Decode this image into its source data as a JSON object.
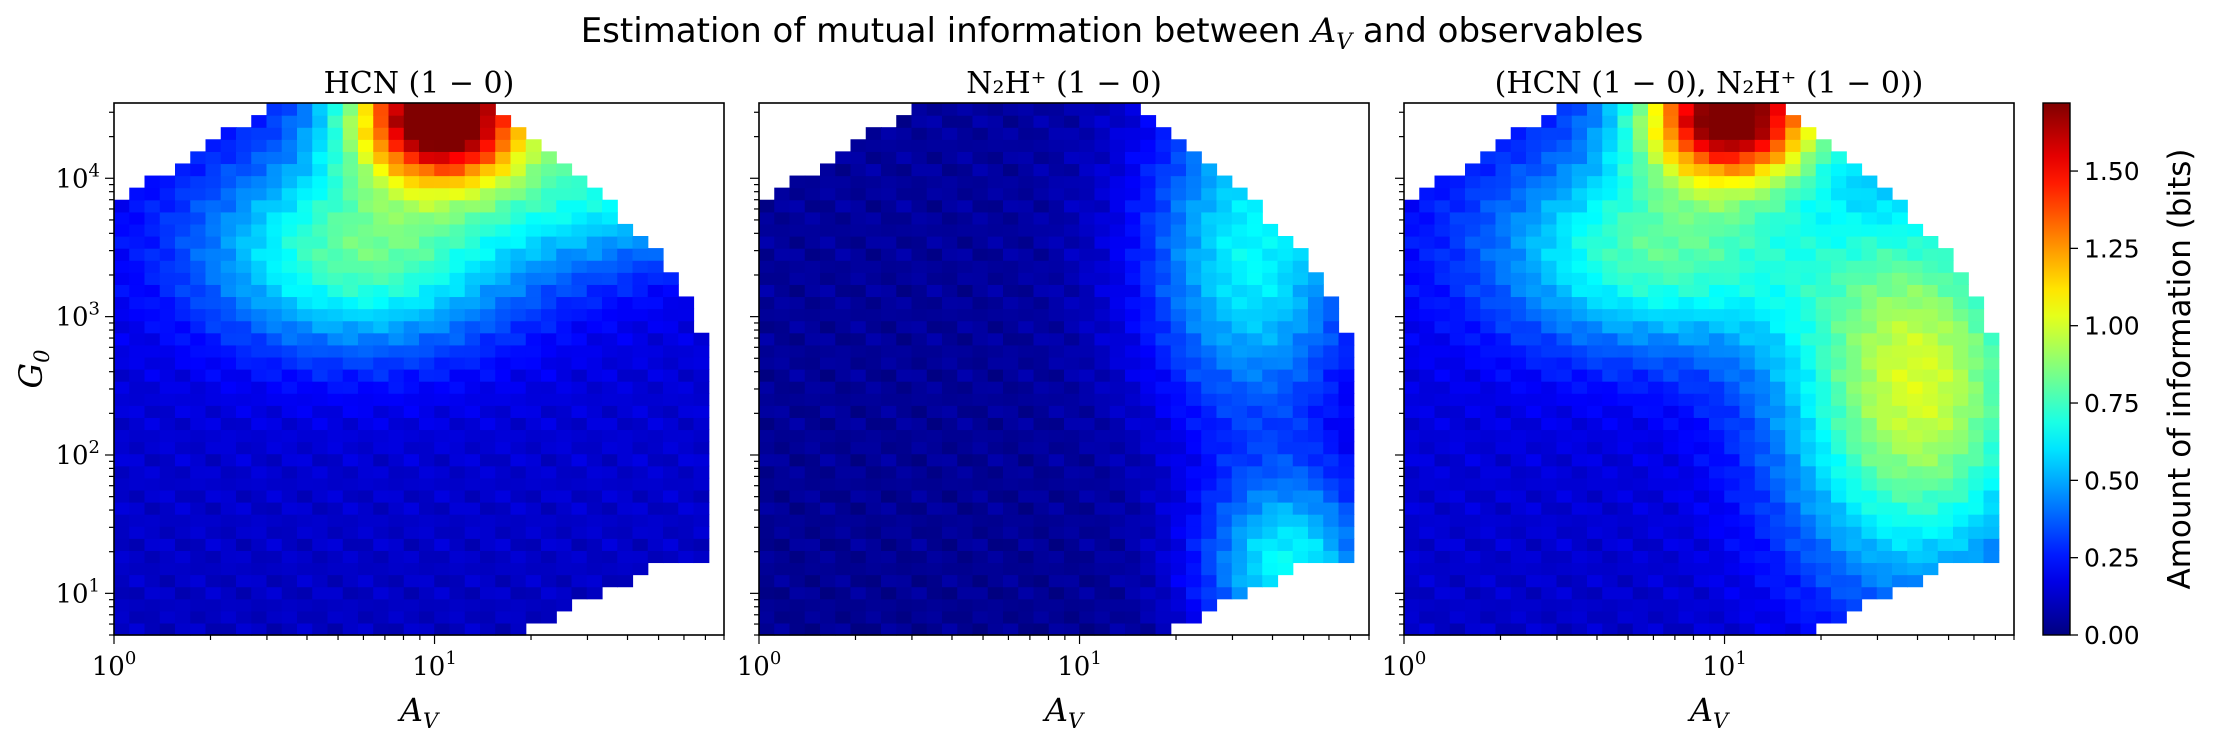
{
  "figure": {
    "suptitle_prefix": "Estimation of mutual information between ",
    "suptitle_var": "A",
    "suptitle_var_sub": "V",
    "suptitle_suffix": " and observables"
  },
  "chart_data": [
    {
      "type": "heatmap",
      "title": "HCN (1 − 0)",
      "xlabel": "A",
      "xlabel_sub": "V",
      "ylabel": "G",
      "ylabel_sub": "0",
      "x_scale": "log",
      "y_scale": "log",
      "xlim": [
        1,
        80
      ],
      "ylim": [
        5,
        35000
      ],
      "x_ticks": [
        {
          "base": "10",
          "exp": "0",
          "value": 1
        },
        {
          "base": "10",
          "exp": "1",
          "value": 10
        }
      ],
      "y_ticks": [
        {
          "base": "10",
          "exp": "1",
          "value": 10
        },
        {
          "base": "10",
          "exp": "2",
          "value": 100
        },
        {
          "base": "10",
          "exp": "3",
          "value": 1000
        },
        {
          "base": "10",
          "exp": "4",
          "value": 10000
        }
      ],
      "hotspots": [
        {
          "x": 10.5,
          "y": 30000,
          "value": 1.7,
          "sx": 0.2,
          "sy": 0.35
        },
        {
          "x": 6.0,
          "y": 3000,
          "value": 0.65,
          "sx": 0.35,
          "sy": 0.5
        },
        {
          "x": 35,
          "y": 9000,
          "value": 0.45,
          "sx": 0.3,
          "sy": 0.4
        }
      ],
      "base_value": 0.18
    },
    {
      "type": "heatmap",
      "title": "N₂H⁺ (1 − 0)",
      "xlabel": "A",
      "xlabel_sub": "V",
      "x_scale": "log",
      "y_scale": "log",
      "xlim": [
        1,
        80
      ],
      "ylim": [
        5,
        35000
      ],
      "x_ticks": [
        {
          "base": "10",
          "exp": "0",
          "value": 1
        },
        {
          "base": "10",
          "exp": "1",
          "value": 10
        }
      ],
      "hotspots": [
        {
          "x": 35,
          "y": 3000,
          "value": 0.6,
          "sx": 0.25,
          "sy": 0.9
        },
        {
          "x": 45,
          "y": 15,
          "value": 0.6,
          "sx": 0.2,
          "sy": 0.5
        }
      ],
      "base_value": 0.05
    },
    {
      "type": "heatmap",
      "title": "(HCN (1 − 0), N₂H⁺ (1 − 0))",
      "xlabel": "A",
      "xlabel_sub": "V",
      "x_scale": "log",
      "y_scale": "log",
      "xlim": [
        1,
        80
      ],
      "ylim": [
        5,
        35000
      ],
      "x_ticks": [
        {
          "base": "10",
          "exp": "0",
          "value": 1
        },
        {
          "base": "10",
          "exp": "1",
          "value": 10
        }
      ],
      "hotspots": [
        {
          "x": 10.5,
          "y": 30000,
          "value": 1.6,
          "sx": 0.2,
          "sy": 0.35
        },
        {
          "x": 6.0,
          "y": 3000,
          "value": 0.6,
          "sx": 0.35,
          "sy": 0.5
        },
        {
          "x": 40,
          "y": 300,
          "value": 0.85,
          "sx": 0.3,
          "sy": 1.0
        }
      ],
      "base_value": 0.2
    }
  ],
  "colorbar": {
    "label": "Amount of information (bits)",
    "min": 0,
    "max": 1.72,
    "colormap": "jet",
    "ticks": [
      "0.00",
      "0.25",
      "0.50",
      "0.75",
      "1.00",
      "1.25",
      "1.50"
    ],
    "tick_values": [
      0,
      0.25,
      0.5,
      0.75,
      1.0,
      1.25,
      1.5
    ]
  }
}
